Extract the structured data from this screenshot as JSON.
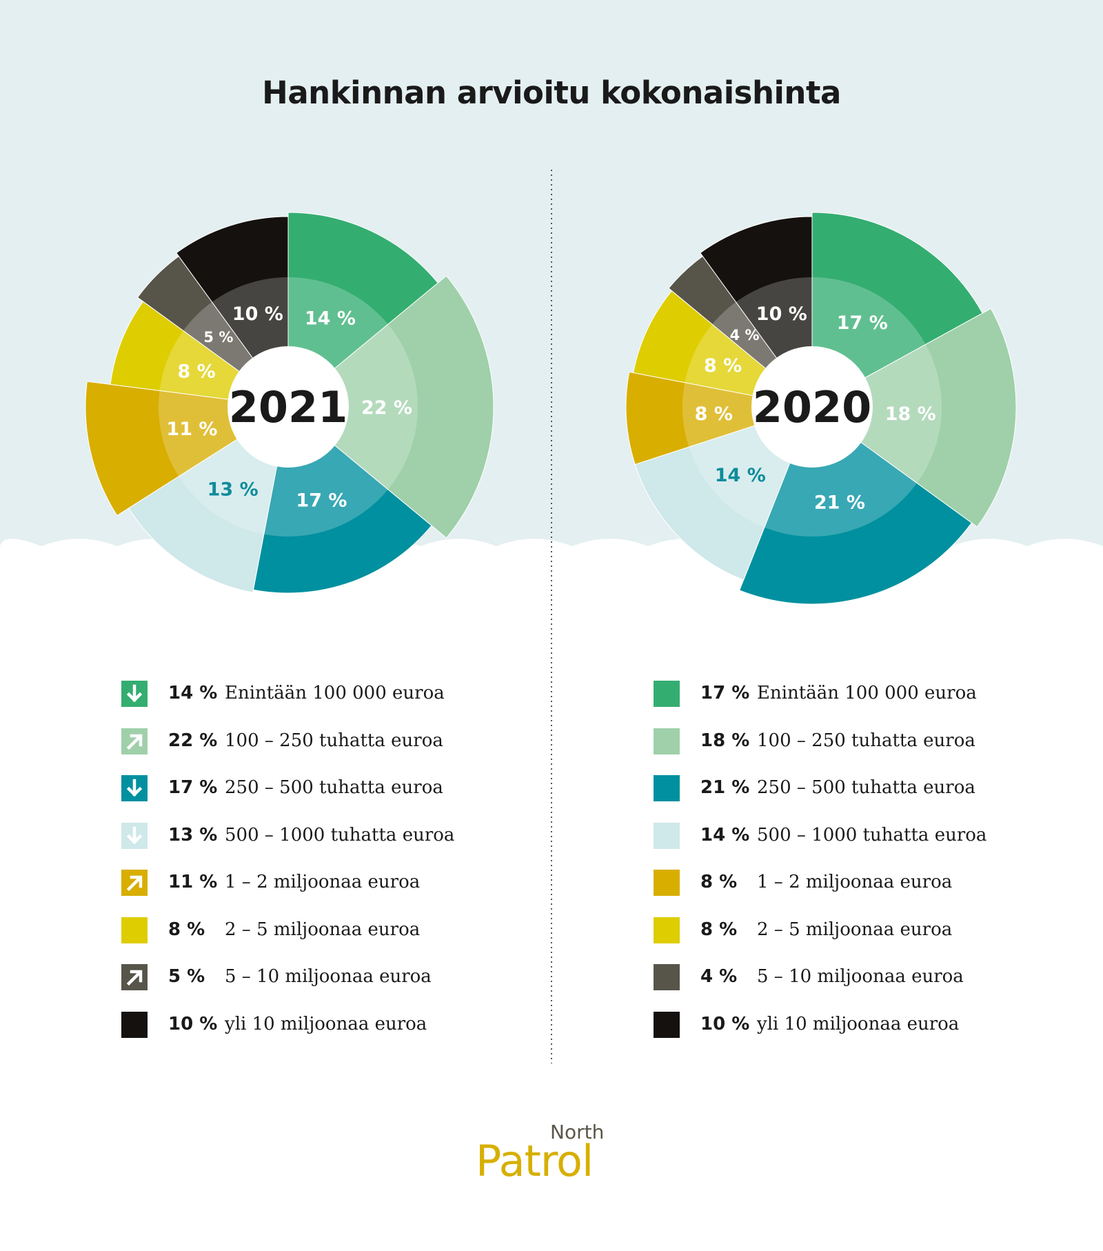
{
  "title": "Hankinnan arvioitu kokonaishinta",
  "colors": {
    "background_top": "#e4eff1",
    "background_bottom": "#ffffff",
    "divider": "#555555",
    "segment_text_light": "#ffffff",
    "segment_text_dark": "#0f8c9b"
  },
  "chart_data": [
    {
      "type": "pie",
      "center_label": "2021",
      "categories": [
        "Enintään 100 000 euroa",
        "100 – 250 tuhatta euroa",
        "250 – 500 tuhatta euroa",
        "500 – 1000 tuhatta euroa",
        "1 – 2 miljoonaa euroa",
        "2 – 5 miljoonaa euroa",
        "5 – 10 miljoonaa euroa",
        "yli 10 miljoonaa euroa"
      ],
      "values": [
        14,
        22,
        17,
        13,
        11,
        8,
        5,
        10
      ],
      "labels": [
        "14 %",
        "22 %",
        "17 %",
        "13 %",
        "11 %",
        "8 %",
        "5 %",
        "10 %"
      ],
      "colors": [
        "#34ad71",
        "#9fd0aa",
        "#00909f",
        "#cfe8ea",
        "#d8ae00",
        "#decd00",
        "#57544a",
        "#14110e"
      ],
      "label_colors": [
        "#ffffff",
        "#ffffff",
        "#ffffff",
        "#0f8c9b",
        "#ffffff",
        "#ffffff",
        "#ffffff",
        "#ffffff"
      ],
      "trend_icons": [
        "arrow-down-icon",
        "arrow-up-right-icon",
        "arrow-down-icon",
        "arrow-down-icon",
        "arrow-up-right-icon",
        "",
        "arrow-up-right-icon",
        ""
      ],
      "legend": "bottom"
    },
    {
      "type": "pie",
      "center_label": "2020",
      "categories": [
        "Enintään 100 000 euroa",
        "100 – 250 tuhatta euroa",
        "250 – 500 tuhatta euroa",
        "500 – 1000 tuhatta euroa",
        "1 – 2 miljoonaa euroa",
        "2 – 5 miljoonaa euroa",
        "5 – 10 miljoonaa euroa",
        "yli 10 miljoonaa euroa"
      ],
      "values": [
        17,
        18,
        21,
        14,
        8,
        8,
        4,
        10
      ],
      "labels": [
        "17 %",
        "18 %",
        "21 %",
        "14 %",
        "8 %",
        "8 %",
        "4 %",
        "10 %"
      ],
      "colors": [
        "#34ad71",
        "#9fd0aa",
        "#00909f",
        "#cfe8ea",
        "#d8ae00",
        "#decd00",
        "#57544a",
        "#14110e"
      ],
      "label_colors": [
        "#ffffff",
        "#ffffff",
        "#ffffff",
        "#0f8c9b",
        "#ffffff",
        "#ffffff",
        "#ffffff",
        "#ffffff"
      ],
      "trend_icons": [
        "",
        "",
        "",
        "",
        "",
        "",
        "",
        ""
      ],
      "legend": "bottom"
    }
  ],
  "logo": {
    "line1": "North",
    "line2": "Patrol"
  }
}
